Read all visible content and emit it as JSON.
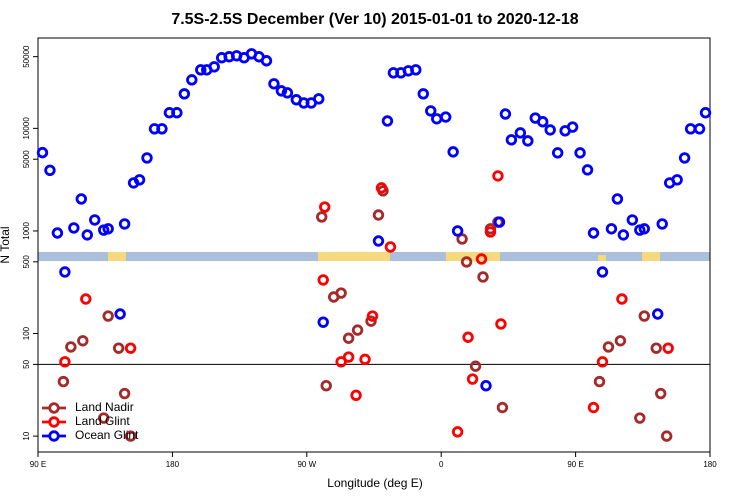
{
  "chart_data": {
    "type": "scatter",
    "title": "7.5S-2.5S December (Ver 10)   2015-01-01 to 2020-12-18",
    "x_label": "Longitude (deg E)",
    "y_label": "N Total",
    "xlim": [
      90,
      540
    ],
    "xticks": [
      {
        "value": 90,
        "label": "90 E"
      },
      {
        "value": 180,
        "label": "180"
      },
      {
        "value": 270,
        "label": "90 W"
      },
      {
        "value": 360,
        "label": "0"
      },
      {
        "value": 450,
        "label": "90 E"
      },
      {
        "value": 540,
        "label": "180"
      }
    ],
    "ylim": [
      7,
      76000
    ],
    "y_log": true,
    "yticks": [
      10,
      50,
      100,
      500,
      1000,
      5000,
      10000,
      50000
    ],
    "reference_line": 50,
    "legend": "bottom-left",
    "series": [
      {
        "name": "Land Nadir",
        "color": "#a52a2a",
        "x": [
          107,
          112,
          120,
          134,
          137,
          144,
          148,
          152,
          280,
          283,
          288,
          293,
          298,
          304,
          313,
          318,
          321,
          374,
          377,
          383,
          388,
          393,
          398,
          401,
          466,
          472,
          480,
          493,
          496,
          504,
          507,
          511
        ],
        "values": [
          34,
          74,
          85,
          15,
          148,
          72,
          26,
          10,
          1370,
          31,
          227,
          248,
          90,
          108,
          132,
          1430,
          2460,
          835,
          499,
          48,
          356,
          1050,
          1220,
          19,
          34,
          74,
          85,
          15,
          148,
          72,
          26,
          10
        ]
      },
      {
        "name": "Land Glint",
        "color": "#ff0000",
        "x": [
          108,
          122,
          152,
          281,
          282,
          293,
          298,
          303,
          309,
          314,
          320,
          326,
          371,
          378,
          381,
          387,
          393,
          398,
          400,
          462,
          468,
          481,
          512
        ],
        "values": [
          53,
          217,
          72,
          333,
          1710,
          53,
          59,
          25,
          56,
          148,
          2630,
          698,
          11,
          92,
          36,
          533,
          977,
          3440,
          124,
          19,
          53,
          217,
          72
        ]
      },
      {
        "name": "Ocean Glint",
        "color": "#0000ff",
        "x": [
          93,
          98,
          103,
          108,
          114,
          119,
          123,
          128,
          134,
          137,
          145,
          148,
          154,
          158,
          163,
          168,
          173,
          178,
          183,
          188,
          193,
          199,
          203,
          208,
          213,
          218,
          223,
          228,
          233,
          238,
          243,
          248,
          253,
          257,
          263,
          268,
          273,
          278,
          281,
          318,
          324,
          328,
          333,
          338,
          343,
          348,
          353,
          357,
          363,
          368,
          371,
          390,
          399,
          403,
          407,
          413,
          418,
          423,
          428,
          433,
          438,
          443,
          448,
          453,
          458,
          462,
          468,
          474,
          478,
          482,
          488,
          493,
          496,
          505,
          508,
          513,
          518,
          523,
          527,
          533,
          537
        ],
        "values": [
          5800,
          3900,
          955,
          398,
          1070,
          2050,
          915,
          1280,
          1020,
          1050,
          155,
          1170,
          2940,
          3150,
          5150,
          9900,
          9900,
          14200,
          14200,
          21700,
          29700,
          37200,
          37200,
          39800,
          48800,
          49900,
          51000,
          48800,
          53300,
          49900,
          45600,
          27200,
          23200,
          22200,
          19000,
          17700,
          17700,
          19400,
          129,
          798,
          11800,
          34800,
          34800,
          36400,
          37200,
          21700,
          14800,
          12400,
          12900,
          5900,
          1000,
          31,
          1220,
          13800,
          7730,
          9040,
          7550,
          12600,
          11600,
          9660,
          5770,
          9460,
          10300,
          5770,
          3940,
          955,
          398,
          1050,
          2050,
          915,
          1280,
          1020,
          1050,
          155,
          1170,
          2940,
          3150,
          5150,
          9900,
          9900,
          14200
        ]
      }
    ]
  }
}
